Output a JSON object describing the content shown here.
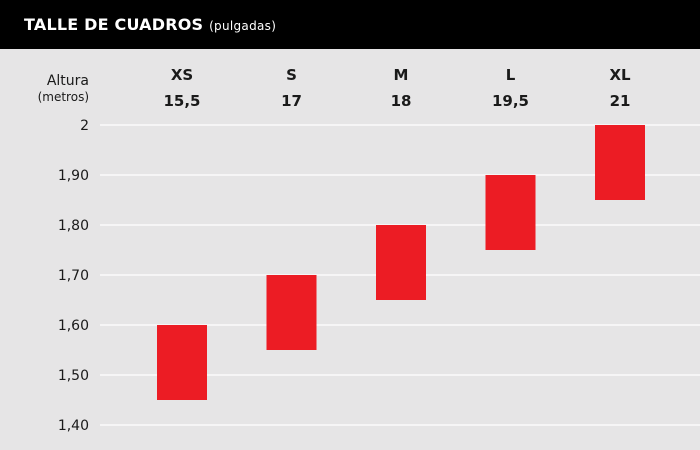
{
  "header": {
    "title": "TALLE DE CUADROS",
    "subtitle": "(pulgadas)"
  },
  "colors": {
    "header_bg": "#000000",
    "background": "#e6e5e6",
    "bar": "#ec1c24",
    "grid": "#ffffff"
  },
  "chart_data": {
    "type": "bar",
    "orientation": "floating-range",
    "title": "TALLE DE CUADROS",
    "subtitle": "(pulgadas)",
    "ylabel": "Altura",
    "ylabel_unit": "(metros)",
    "ylim": [
      1.4,
      2.0
    ],
    "yticks": [
      2.0,
      1.9,
      1.8,
      1.7,
      1.6,
      1.5,
      1.4
    ],
    "ytick_labels": [
      "2",
      "1,90",
      "1,80",
      "1,70",
      "1,60",
      "1,50",
      "1,40"
    ],
    "grid": true,
    "categories": [
      "XS",
      "S",
      "M",
      "L",
      "XL"
    ],
    "category_values": [
      "15,5",
      "17",
      "18",
      "19,5",
      "21"
    ],
    "ranges": [
      [
        1.45,
        1.6
      ],
      [
        1.55,
        1.7
      ],
      [
        1.65,
        1.8
      ],
      [
        1.75,
        1.9
      ],
      [
        1.85,
        2.0
      ]
    ]
  }
}
